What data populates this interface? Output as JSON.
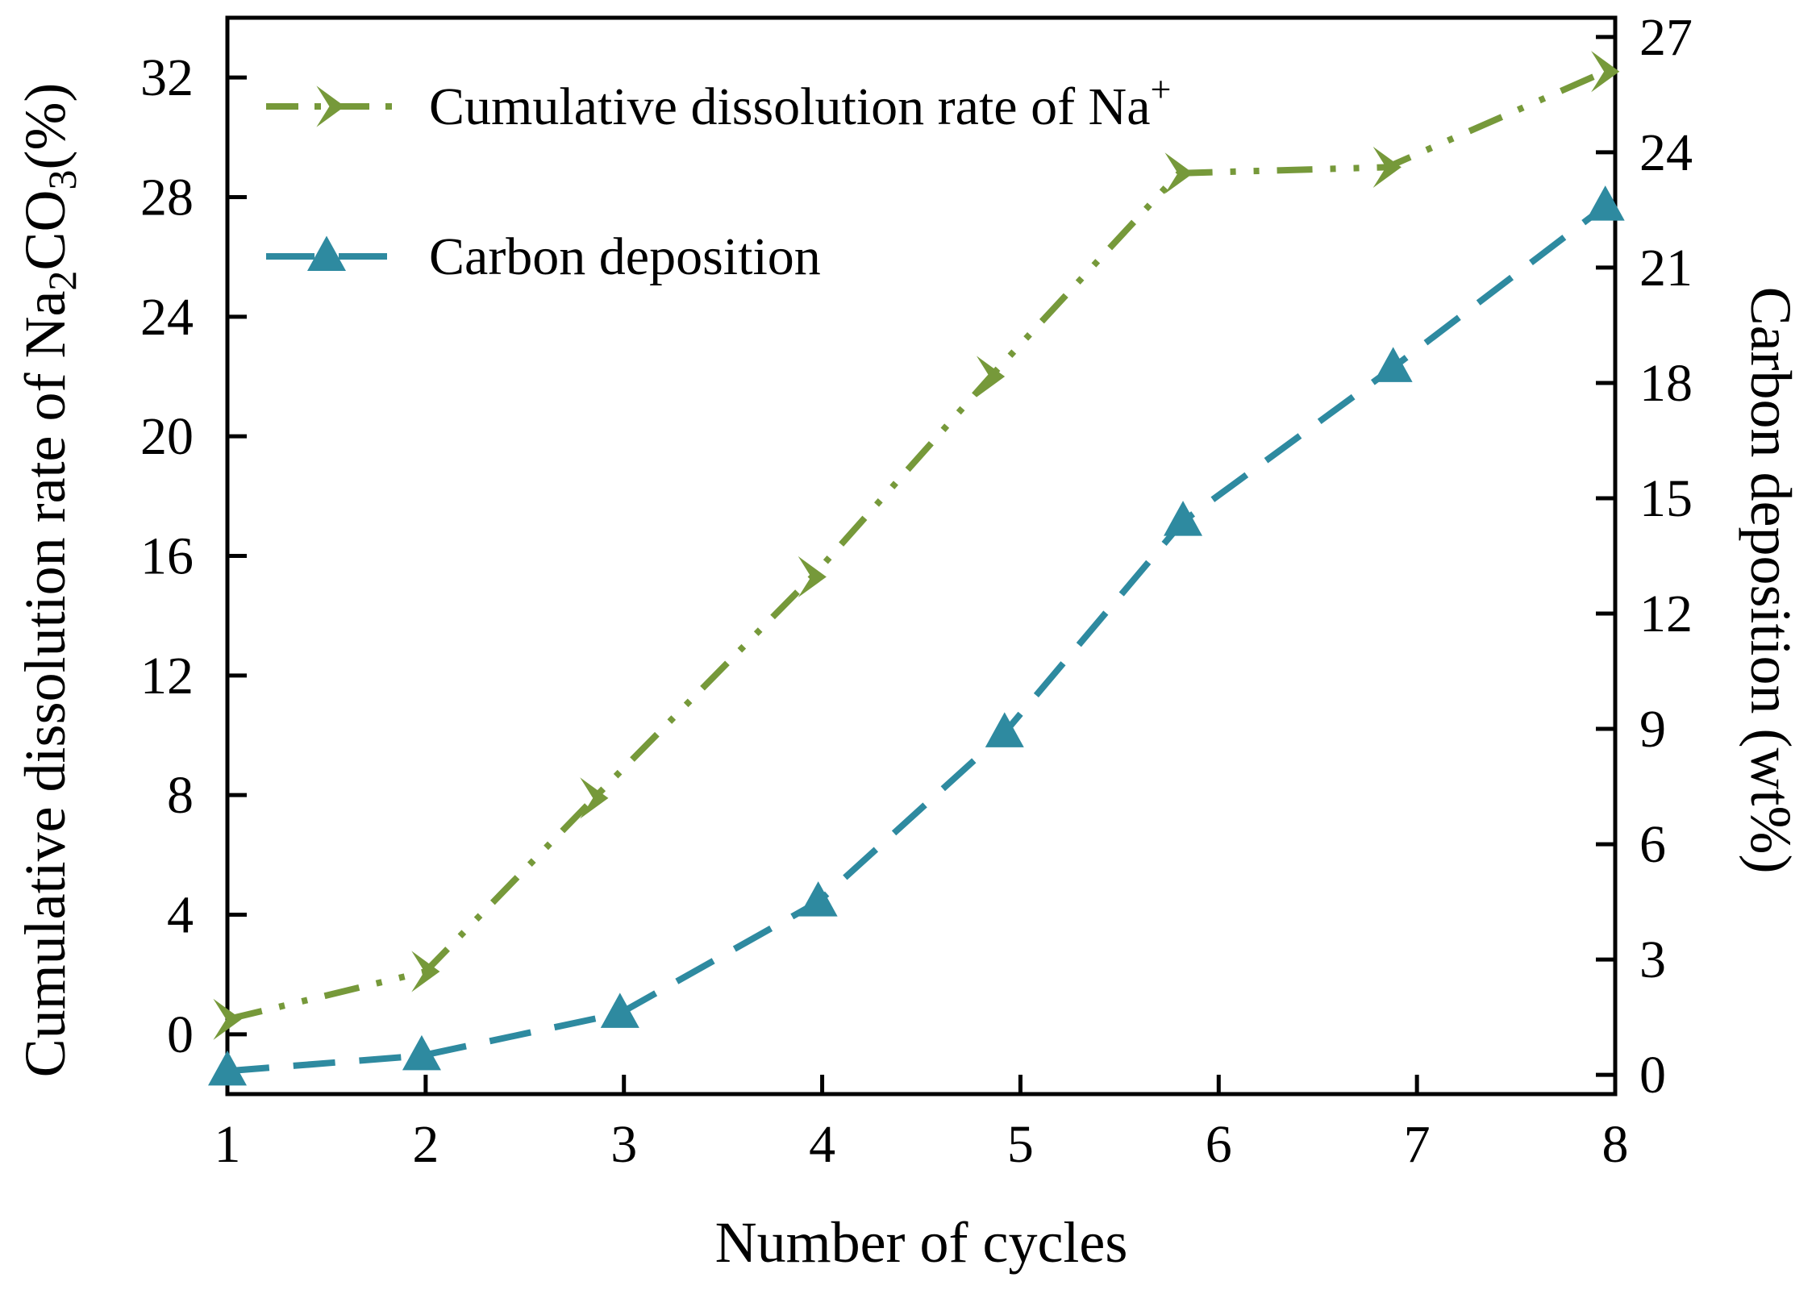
{
  "chart_data": {
    "type": "line",
    "x": [
      1,
      2,
      3,
      4,
      5,
      6,
      7,
      8
    ],
    "xlabel": "Number of cycles",
    "xlim": [
      1,
      8
    ],
    "xticks": [
      "1",
      "2",
      "3",
      "4",
      "5",
      "6",
      "7",
      "8"
    ],
    "ylabel_left": {
      "prefix": "Cumulative dissolution rate of Na",
      "sub1": "2",
      "mid": "CO",
      "sub2": "3",
      "suffix": "(%)"
    },
    "ylim_left": [
      -2,
      34
    ],
    "yticks_left": [
      "0",
      "4",
      "8",
      "12",
      "16",
      "20",
      "24",
      "28",
      "32"
    ],
    "ylabel_right": "Carbon deposition (wt%)",
    "ylim_right": [
      -0.5,
      27.5
    ],
    "yticks_right": [
      "0",
      "3",
      "6",
      "9",
      "12",
      "15",
      "18",
      "21",
      "24",
      "27"
    ],
    "series": [
      {
        "name": "Cumulative dissolution rate of Na",
        "name_sup": "+",
        "axis": "left",
        "x": [
          1,
          2,
          2.85,
          3.95,
          4.85,
          5.8,
          6.85,
          7.95
        ],
        "values": [
          0.5,
          2.1,
          7.9,
          15.3,
          22.0,
          28.8,
          29.0,
          32.2
        ],
        "color": "#76993a",
        "marker": "chevron-right",
        "line_style": "dash-dot-dot"
      },
      {
        "name": "Carbon deposition",
        "axis": "right",
        "x": [
          1,
          1.98,
          2.98,
          3.98,
          4.92,
          5.82,
          6.88,
          7.95
        ],
        "values": [
          0.1,
          0.5,
          1.6,
          4.5,
          8.9,
          14.4,
          18.4,
          22.6
        ],
        "color": "#2e8aa0",
        "marker": "triangle-up",
        "line_style": "dash"
      }
    ],
    "legend_position": "top-left",
    "grid": false
  }
}
